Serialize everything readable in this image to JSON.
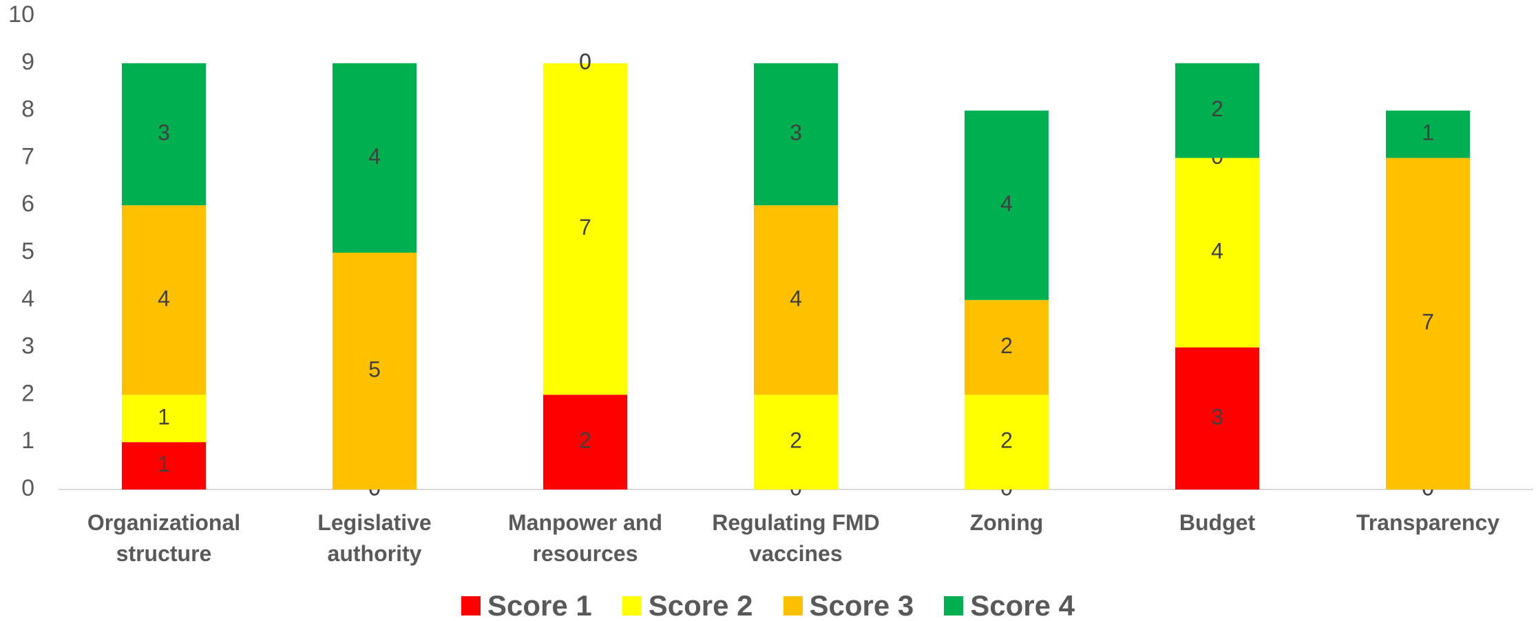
{
  "chart_data": {
    "type": "stacked_bar",
    "categories": [
      "Organizational structure",
      "Legislative authority",
      "Manpower and resources",
      "Regulating FMD vaccines",
      "Zoning",
      "Budget",
      "Transparency"
    ],
    "series": [
      {
        "name": "Score 1",
        "color": "#ff0000",
        "values": [
          1,
          0,
          2,
          0,
          0,
          3,
          0
        ]
      },
      {
        "name": "Score 2",
        "color": "#ffff00",
        "values": [
          1,
          0,
          7,
          2,
          2,
          4,
          0
        ]
      },
      {
        "name": "Score 3",
        "color": "#ffc000",
        "values": [
          4,
          5,
          0,
          4,
          2,
          0,
          7
        ]
      },
      {
        "name": "Score 4",
        "color": "#00b050",
        "values": [
          3,
          4,
          0,
          3,
          4,
          2,
          1
        ]
      }
    ],
    "ylim": [
      0,
      10
    ],
    "yticks": [
      0,
      1,
      2,
      3,
      4,
      5,
      6,
      7,
      8,
      9,
      10
    ],
    "grid": false,
    "legend": "bottom"
  }
}
